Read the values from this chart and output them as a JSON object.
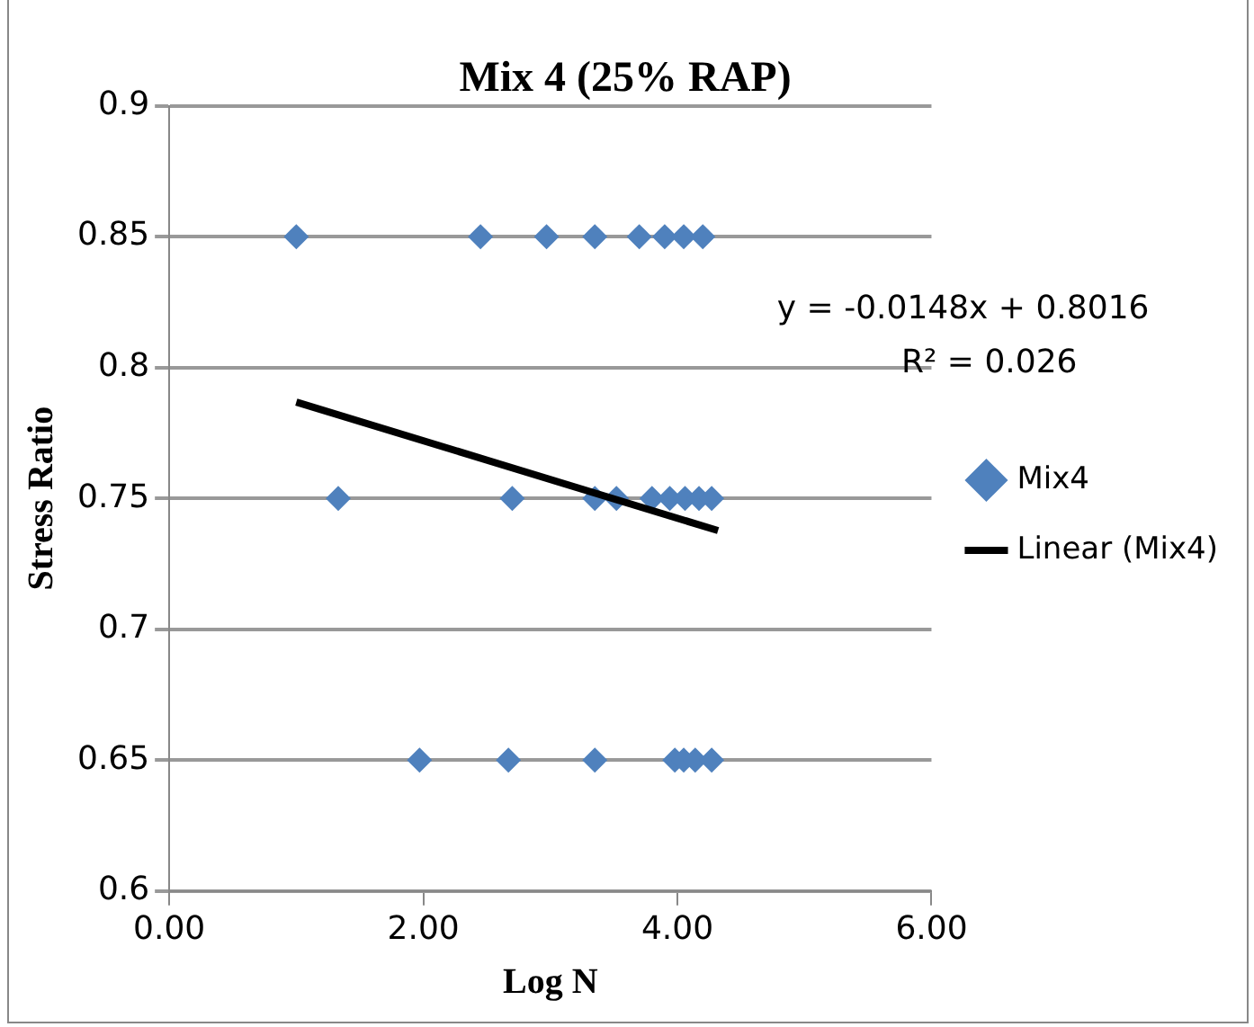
{
  "chart_data": {
    "type": "scatter",
    "title": "Mix 4 (25% RAP)",
    "xlabel": "Log N",
    "ylabel": "Stress Ratio",
    "xlim": [
      0,
      6
    ],
    "xticks": [
      {
        "value": 0,
        "label": "0.00"
      },
      {
        "value": 2,
        "label": "2.00"
      },
      {
        "value": 4,
        "label": "4.00"
      },
      {
        "value": 6,
        "label": "6.00"
      }
    ],
    "ylim": [
      0.6,
      0.9
    ],
    "yticks": [
      0.6,
      0.65,
      0.7,
      0.75,
      0.8,
      0.85,
      0.9
    ],
    "grid": "y",
    "legend": "right",
    "marker": "diamond",
    "annotations": [
      "y = -0.0148x + 0.8016",
      "R² = 0.026"
    ],
    "series": [
      {
        "name": "Mix4",
        "color": "#4f81bd",
        "x": [
          1.0,
          2.45,
          2.97,
          3.35,
          3.7,
          3.9,
          4.05,
          4.2,
          1.33,
          2.7,
          3.35,
          3.52,
          3.8,
          3.94,
          4.06,
          4.17,
          4.27,
          1.97,
          2.67,
          3.35,
          3.98,
          4.05,
          4.14,
          4.27
        ],
        "values": [
          0.85,
          0.85,
          0.85,
          0.85,
          0.85,
          0.85,
          0.85,
          0.85,
          0.75,
          0.75,
          0.75,
          0.75,
          0.75,
          0.75,
          0.75,
          0.75,
          0.75,
          0.65,
          0.65,
          0.65,
          0.65,
          0.65,
          0.65,
          0.65
        ]
      },
      {
        "name": "Linear (Mix4)",
        "type": "line",
        "color": "#000000",
        "marker": "none",
        "x": [
          1.0,
          4.32
        ],
        "values": [
          0.7868,
          0.7377
        ]
      }
    ]
  }
}
